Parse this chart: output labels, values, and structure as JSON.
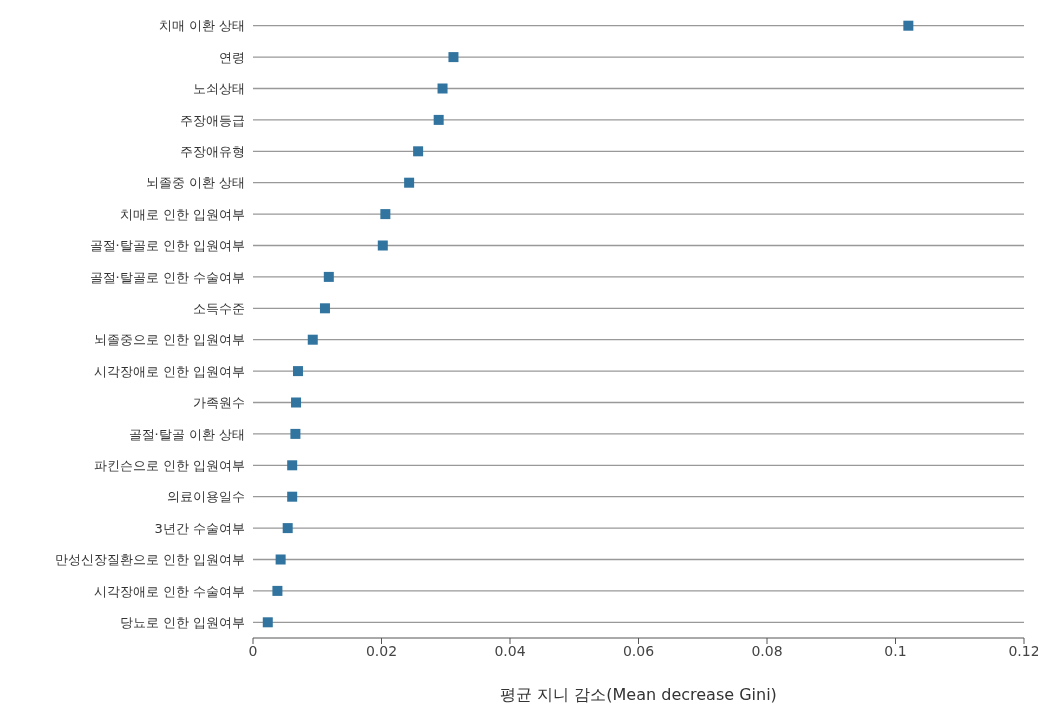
{
  "chart_data": {
    "type": "scatter",
    "orientation": "horizontal",
    "xlabel": "평균 지니 감소(Mean decrease Gini)",
    "categories": [
      "치매 이환 상태",
      "연령",
      "노쇠상태",
      "주장애등급",
      "주장애유형",
      "뇌졸중 이환 상태",
      "치매로 인한 입원여부",
      "골절·탈골로 인한 입원여부",
      "골절·탈골로 인한 수술여부",
      "소득수준",
      "뇌졸중으로 인한 입원여부",
      "시각장애로 인한 입원여부",
      "가족원수",
      "골절·탈골 이환 상태",
      "파킨슨으로 인한 입원여부",
      "의료이용일수",
      "3년간 수술여부",
      "만성신장질환으로 인한 입원여부",
      "시각장애로 인한 수술여부",
      "당뇨로 인한 입원여부"
    ],
    "values": [
      0.102,
      0.0312,
      0.0295,
      0.0289,
      0.0257,
      0.0243,
      0.0206,
      0.0202,
      0.0118,
      0.0112,
      0.0093,
      0.007,
      0.0067,
      0.0066,
      0.0061,
      0.0061,
      0.0054,
      0.0043,
      0.0038,
      0.0023
    ],
    "color": "#31749f",
    "marker": "square",
    "xlim": [
      0,
      0.12
    ],
    "xticks": [
      0,
      0.02,
      0.04,
      0.06,
      0.08,
      0.1,
      0.12
    ],
    "grid": "y"
  }
}
